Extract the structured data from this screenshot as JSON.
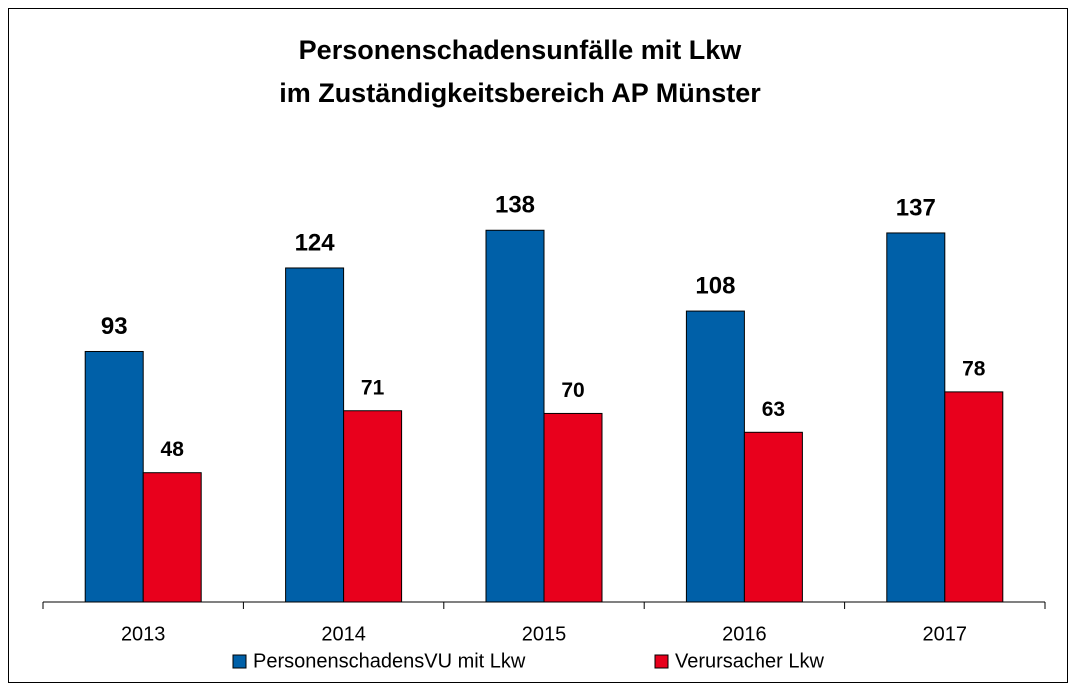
{
  "chart_data": {
    "type": "bar",
    "title": [
      "Personenschadensunfälle mit Lkw",
      "im Zuständigkeitsbereich AP Münster"
    ],
    "categories": [
      "2013",
      "2014",
      "2015",
      "2016",
      "2017"
    ],
    "series": [
      {
        "name": "PersonenschadensVU mit Lkw",
        "color": "#0060a8",
        "values": [
          93,
          124,
          138,
          108,
          137
        ]
      },
      {
        "name": "Verursacher Lkw",
        "color": "#e8001c",
        "values": [
          48,
          71,
          70,
          63,
          78
        ]
      }
    ],
    "ylim": [
      0,
      160
    ],
    "legend": "bottom"
  }
}
